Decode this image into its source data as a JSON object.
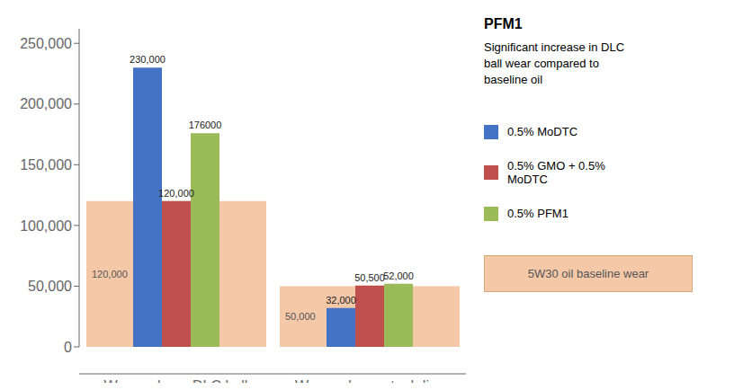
{
  "chart_data": {
    "type": "bar",
    "categories": [
      "Wear volume DLC ball",
      "Wear volume steel disc"
    ],
    "series": [
      {
        "name": "5W30 oil baseline wear",
        "color": "#F5C8A8",
        "values": [
          120000,
          50000
        ],
        "value_labels": [
          "120,000",
          "50,000"
        ]
      },
      {
        "name": "0.5% MoDTC",
        "color": "#4472C4",
        "values": [
          230000,
          32000
        ],
        "value_labels": [
          "230,000",
          "32,000"
        ]
      },
      {
        "name": "0.5% GMO + 0.5%\nMoDTC",
        "color": "#C0504D",
        "values": [
          120000,
          50500
        ],
        "value_labels": [
          "120,000",
          "50,500"
        ]
      },
      {
        "name": "0.5% PFM1",
        "color": "#9BBB59",
        "values": [
          176000,
          52000
        ],
        "value_labels": [
          "176000",
          "52,000"
        ]
      }
    ],
    "ylim": [
      0,
      262000
    ],
    "yticks": [
      0,
      {
        "value": 50000,
        "label": "50,000"
      },
      {
        "value": 100000,
        "label": "100,000"
      },
      {
        "value": 150000,
        "label": "150,000"
      },
      {
        "value": 200000,
        "label": "200,000"
      },
      {
        "value": 250000,
        "label": "250,000"
      }
    ],
    "data_labels": true,
    "legend": "right",
    "grid": false,
    "annotations": [
      "PFM1",
      "Significant increase in DLC\nball wear compared to\nbaseline oil"
    ]
  }
}
